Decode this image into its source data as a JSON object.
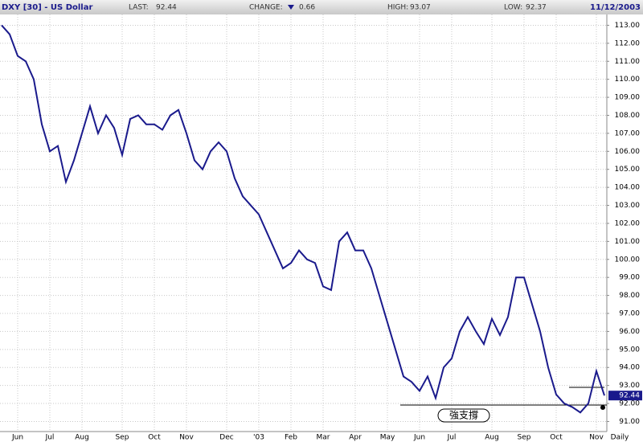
{
  "chart_data": {
    "type": "line",
    "header": {
      "symbol": "DXY [30] - US Dollar",
      "last_label": "LAST:",
      "last": 92.44,
      "change_label": "CHANGE:",
      "change": 0.66,
      "high_label": "HIGH:",
      "high": 93.07,
      "low_label": "LOW:",
      "low": 92.37,
      "date": "11/12/2003"
    },
    "periodicity": "Daily",
    "annotation": "強支撐",
    "categories": [
      null,
      null,
      "Jun",
      null,
      null,
      null,
      "Jul",
      null,
      null,
      null,
      "Aug",
      null,
      null,
      null,
      null,
      "Sep",
      null,
      null,
      null,
      "Oct",
      null,
      null,
      null,
      "Nov",
      null,
      null,
      null,
      null,
      "Dec",
      null,
      null,
      null,
      "'03",
      null,
      null,
      null,
      "Feb",
      null,
      null,
      null,
      "Mar",
      null,
      null,
      null,
      "Apr",
      null,
      null,
      null,
      "May",
      null,
      null,
      null,
      "Jun",
      null,
      null,
      null,
      "Jul",
      null,
      null,
      null,
      null,
      "Aug",
      null,
      null,
      null,
      "Sep",
      null,
      null,
      null,
      "Oct",
      null,
      null,
      null,
      null,
      "Nov",
      null
    ],
    "series": [
      {
        "name": "DXY",
        "color": "#1a1a8c",
        "values": [
          113.0,
          112.5,
          111.3,
          111.0,
          110.0,
          107.5,
          106.0,
          106.3,
          104.3,
          105.5,
          107.0,
          108.5,
          107.0,
          108.0,
          107.3,
          105.8,
          107.8,
          108.0,
          107.5,
          107.5,
          107.2,
          108.0,
          108.3,
          107.0,
          105.5,
          105.0,
          106.0,
          106.5,
          106.0,
          104.5,
          103.5,
          103.0,
          102.5,
          101.5,
          100.5,
          99.5,
          99.8,
          100.5,
          100.0,
          99.8,
          98.5,
          98.3,
          101.0,
          101.5,
          100.5,
          100.5,
          99.5,
          98.0,
          96.5,
          95.0,
          93.5,
          93.2,
          92.7,
          93.5,
          92.3,
          94.0,
          94.5,
          96.0,
          96.8,
          96.0,
          95.3,
          96.7,
          95.8,
          96.8,
          99.0,
          99.0,
          97.5,
          96.0,
          94.0,
          92.5,
          92.0,
          91.8,
          91.5,
          92.0,
          93.8,
          92.44
        ]
      }
    ],
    "ylim": [
      89.95,
      113.6
    ],
    "yticks": [
      {
        "value": 91,
        "label": "91.00"
      },
      {
        "value": 92,
        "label": "92.00"
      },
      {
        "value": 93,
        "label": "93.00"
      },
      {
        "value": 94,
        "label": "94.00"
      },
      {
        "value": 95,
        "label": "95.00"
      },
      {
        "value": 96,
        "label": "96.00"
      },
      {
        "value": 97,
        "label": "97.00"
      },
      {
        "value": 98,
        "label": "98.00"
      },
      {
        "value": 99,
        "label": "99.00"
      },
      {
        "value": 100,
        "label": "100.00"
      },
      {
        "value": 101,
        "label": "101.00"
      },
      {
        "value": 102,
        "label": "102.00"
      },
      {
        "value": 103,
        "label": "103.00"
      },
      {
        "value": 104,
        "label": "104.00"
      },
      {
        "value": 105,
        "label": "105.00"
      },
      {
        "value": 106,
        "label": "106.00"
      },
      {
        "value": 107,
        "label": "107.00"
      },
      {
        "value": 108,
        "label": "108.00"
      },
      {
        "value": 109,
        "label": "109.00"
      },
      {
        "value": 110,
        "label": "110.00"
      },
      {
        "value": 111,
        "label": "111.00"
      },
      {
        "value": 112,
        "label": "112.00"
      },
      {
        "value": 113,
        "label": "113.00"
      }
    ],
    "grid": true
  }
}
